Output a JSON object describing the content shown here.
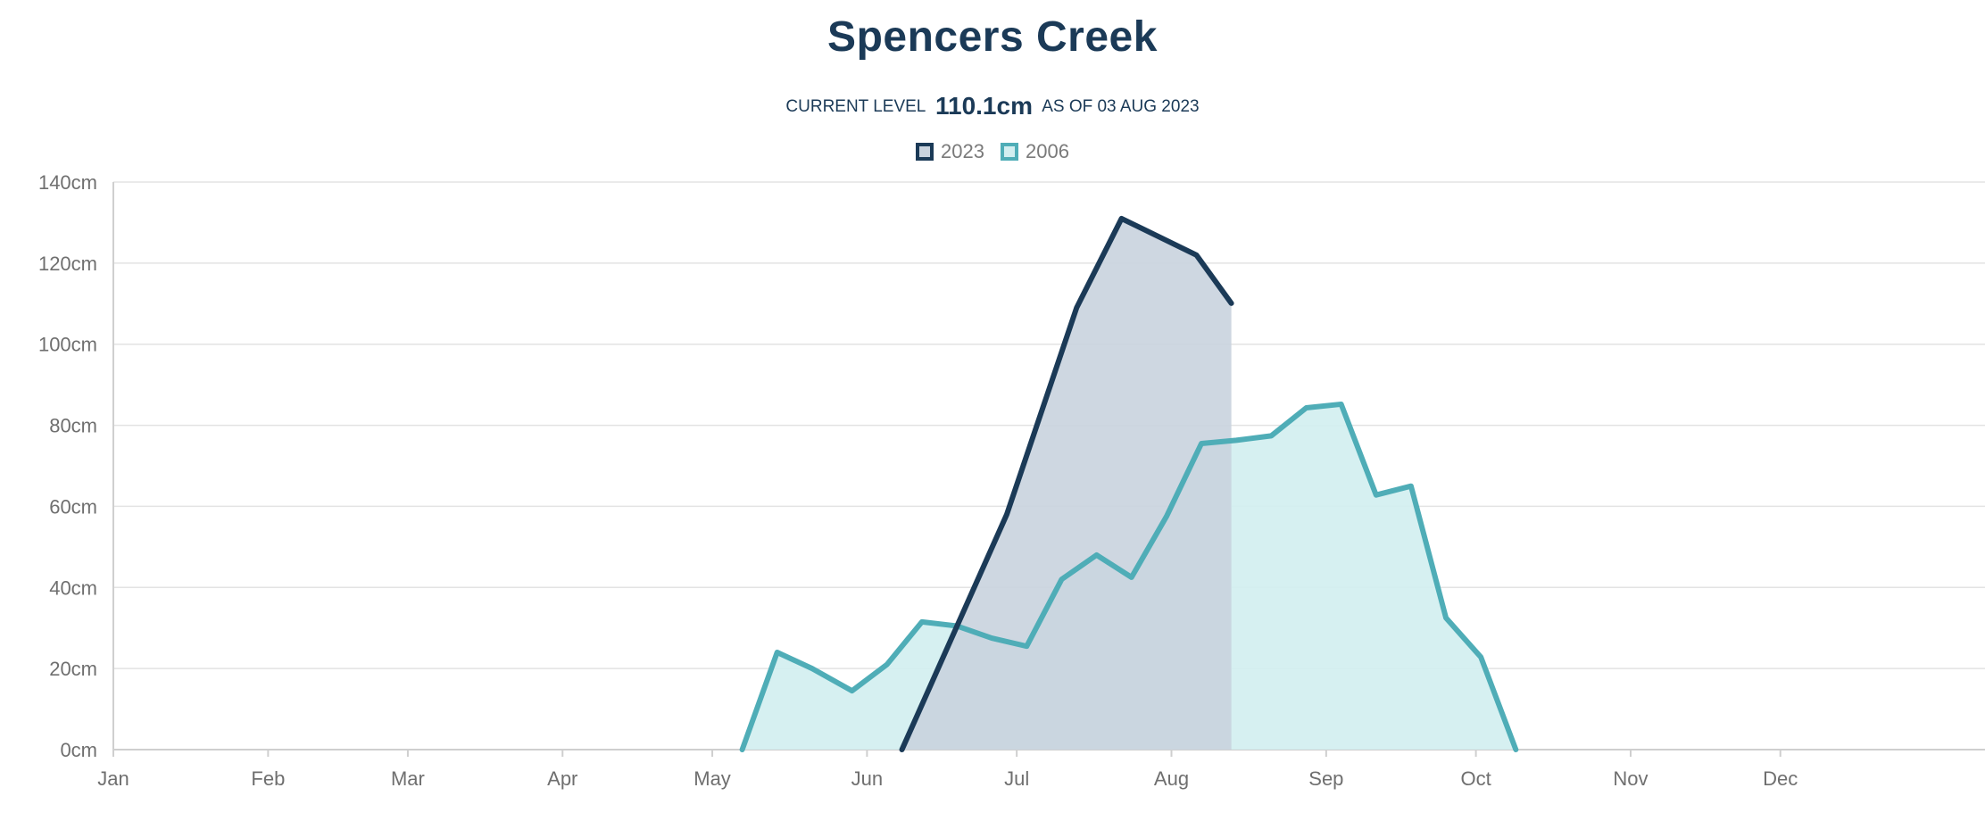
{
  "title": "Spencers Creek",
  "subtitle": {
    "prefix": "CURRENT LEVEL",
    "level": "110.1cm",
    "suffix": "AS OF 03 AUG 2023"
  },
  "colors": {
    "series_2023_line": "#1b3a57",
    "series_2023_fill": "#c9d3de",
    "series_2006_line": "#4fadb7",
    "series_2006_fill": "#d2eef0",
    "grid": "#e3e3e3",
    "axis": "#cfcfcf"
  },
  "chart_data": {
    "type": "area",
    "title": "Spencers Creek",
    "xlabel": "",
    "ylabel": "",
    "x_axis_ticks": [
      "Jan",
      "Feb",
      "Mar",
      "Apr",
      "May",
      "Jun",
      "Jul",
      "Aug",
      "Sep",
      "Oct",
      "Nov",
      "Dec"
    ],
    "x_unit": "day of year (1 = 1 Jan)",
    "xlim": [
      1,
      376
    ],
    "y_axis_ticks": [
      "0cm",
      "20cm",
      "40cm",
      "60cm",
      "80cm",
      "100cm",
      "120cm",
      "140cm"
    ],
    "ylim": [
      0,
      140
    ],
    "grid": true,
    "legend_position": "top-center",
    "series": [
      {
        "name": "2023",
        "points": [
          [
            159,
            0
          ],
          [
            180,
            58
          ],
          [
            194,
            109
          ],
          [
            203,
            131
          ],
          [
            218,
            122
          ],
          [
            225,
            110.1
          ]
        ]
      },
      {
        "name": "2006",
        "points": [
          [
            127,
            0
          ],
          [
            134,
            24
          ],
          [
            141,
            20
          ],
          [
            149,
            14.5
          ],
          [
            156,
            21
          ],
          [
            163,
            31.5
          ],
          [
            170,
            30.5
          ],
          [
            177,
            27.5
          ],
          [
            184,
            25.5
          ],
          [
            191,
            42
          ],
          [
            198,
            48
          ],
          [
            205,
            42.5
          ],
          [
            212,
            57.5
          ],
          [
            219,
            75.5
          ],
          [
            226,
            76.3
          ],
          [
            233,
            77.4
          ],
          [
            240,
            84.3
          ],
          [
            247,
            85.2
          ],
          [
            254,
            62.8
          ],
          [
            261,
            65
          ],
          [
            268,
            32.5
          ],
          [
            275,
            22.8
          ],
          [
            282,
            0
          ]
        ]
      }
    ]
  }
}
